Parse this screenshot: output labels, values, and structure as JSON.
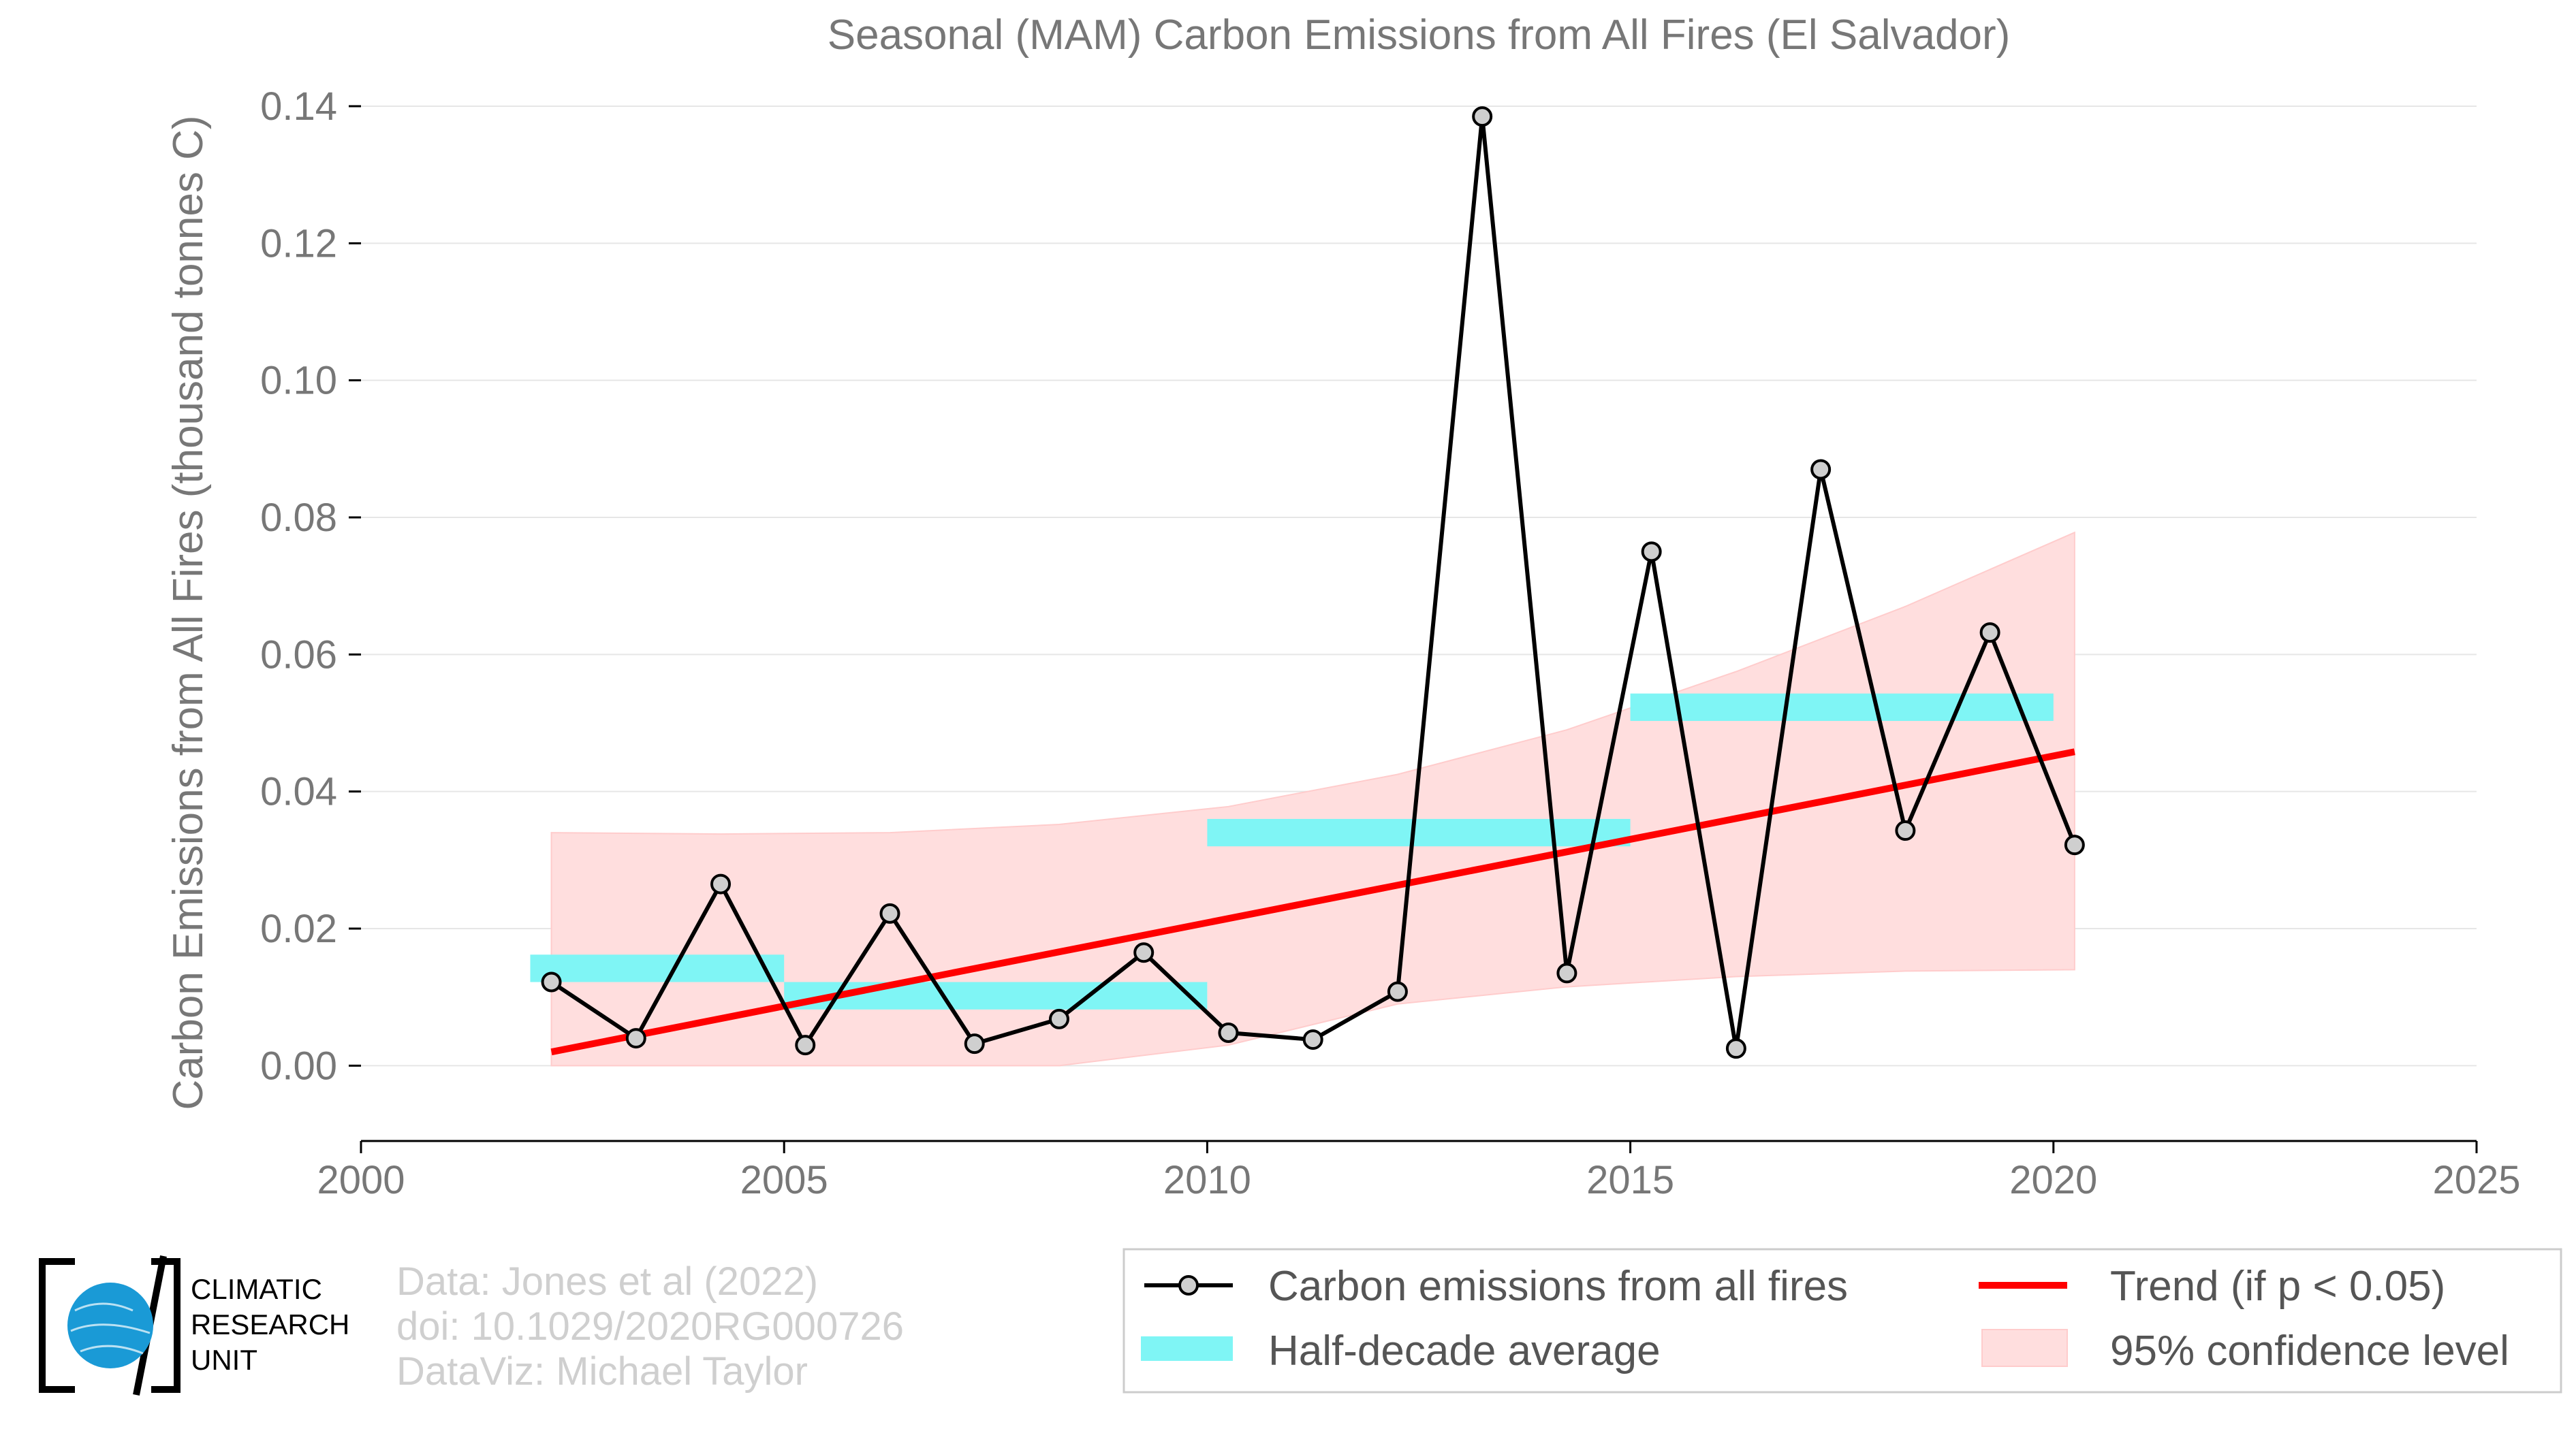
{
  "chart_data": {
    "type": "line",
    "title": "Seasonal (MAM) Carbon Emissions from All Fires (El Salvador)",
    "ylabel": "Carbon Emissions from All Fires (thousand tonnes C)",
    "xlabel": "",
    "xlim": [
      2000,
      2025
    ],
    "ylim": [
      -0.01,
      0.14
    ],
    "x_ticks": [
      2000,
      2005,
      2010,
      2015,
      2020,
      2025
    ],
    "x_tick_labels": [
      "2000",
      "2005",
      "2010",
      "2015",
      "2020",
      "2025"
    ],
    "y_ticks": [
      0.0,
      0.02,
      0.04,
      0.06,
      0.08,
      0.1,
      0.12,
      0.14
    ],
    "y_tick_labels": [
      "0.00",
      "0.02",
      "0.04",
      "0.06",
      "0.08",
      "0.10",
      "0.12",
      "0.14"
    ],
    "grid": "horizontal",
    "series": [
      {
        "name": "Carbon emissions from all fires",
        "color": "#000000",
        "x": [
          2002.25,
          2003.25,
          2004.25,
          2005.25,
          2006.25,
          2007.25,
          2008.25,
          2009.25,
          2010.25,
          2011.25,
          2012.25,
          2013.25,
          2014.25,
          2015.25,
          2016.25,
          2017.25,
          2018.25,
          2019.25,
          2020.25
        ],
        "values": [
          0.0122,
          0.004,
          0.0265,
          0.003,
          0.0222,
          0.0032,
          0.0068,
          0.0165,
          0.0048,
          0.0038,
          0.0108,
          0.1385,
          0.0135,
          0.075,
          0.0025,
          0.087,
          0.0343,
          0.0632,
          0.0322
        ]
      },
      {
        "name": "Half-decade average",
        "color": "#7ff5f5",
        "segments": [
          {
            "x0": 2002,
            "x1": 2005,
            "value": 0.0142
          },
          {
            "x0": 2005,
            "x1": 2010,
            "value": 0.0102
          },
          {
            "x0": 2010,
            "x1": 2015,
            "value": 0.034
          },
          {
            "x0": 2015,
            "x1": 2020,
            "value": 0.0523
          }
        ]
      },
      {
        "name": "Trend (if p < 0.05)",
        "color": "#ff0000",
        "x": [
          2002.25,
          2020.25
        ],
        "values": [
          0.002,
          0.0458
        ]
      },
      {
        "name": "95% confidence level",
        "color": "#ffdede",
        "x": [
          2002.25,
          2004.25,
          2006.25,
          2008.25,
          2010.25,
          2012.25,
          2014.25,
          2016.25,
          2018.25,
          2020.25
        ],
        "upper": [
          0.034,
          0.0338,
          0.034,
          0.0352,
          0.0378,
          0.0425,
          0.049,
          0.0575,
          0.067,
          0.0778
        ],
        "lower": [
          0.0,
          0.0,
          0.0,
          0.0,
          0.003,
          0.009,
          0.0115,
          0.013,
          0.0138,
          0.014
        ]
      }
    ],
    "legend_placement": "bottom-right",
    "legend": [
      {
        "label": "Carbon emissions from all fires",
        "kind": "line-marker",
        "color": "#000000"
      },
      {
        "label": "Trend (if p < 0.05)",
        "kind": "line",
        "color": "#ff0000"
      },
      {
        "label": "Half-decade average",
        "kind": "band",
        "color": "#7ff5f5"
      },
      {
        "label": "95% confidence level",
        "kind": "fill",
        "color": "#ffdede"
      }
    ]
  },
  "credits": {
    "data_source": "Data: Jones et al (2022)",
    "doi": "doi: 10.1029/2020RG000726",
    "dataviz": "DataViz: Michael Taylor"
  },
  "logo": {
    "line1": "CLIMATIC",
    "line2": "RESEARCH",
    "line3": "UNIT",
    "color": "#1a9ad6"
  }
}
